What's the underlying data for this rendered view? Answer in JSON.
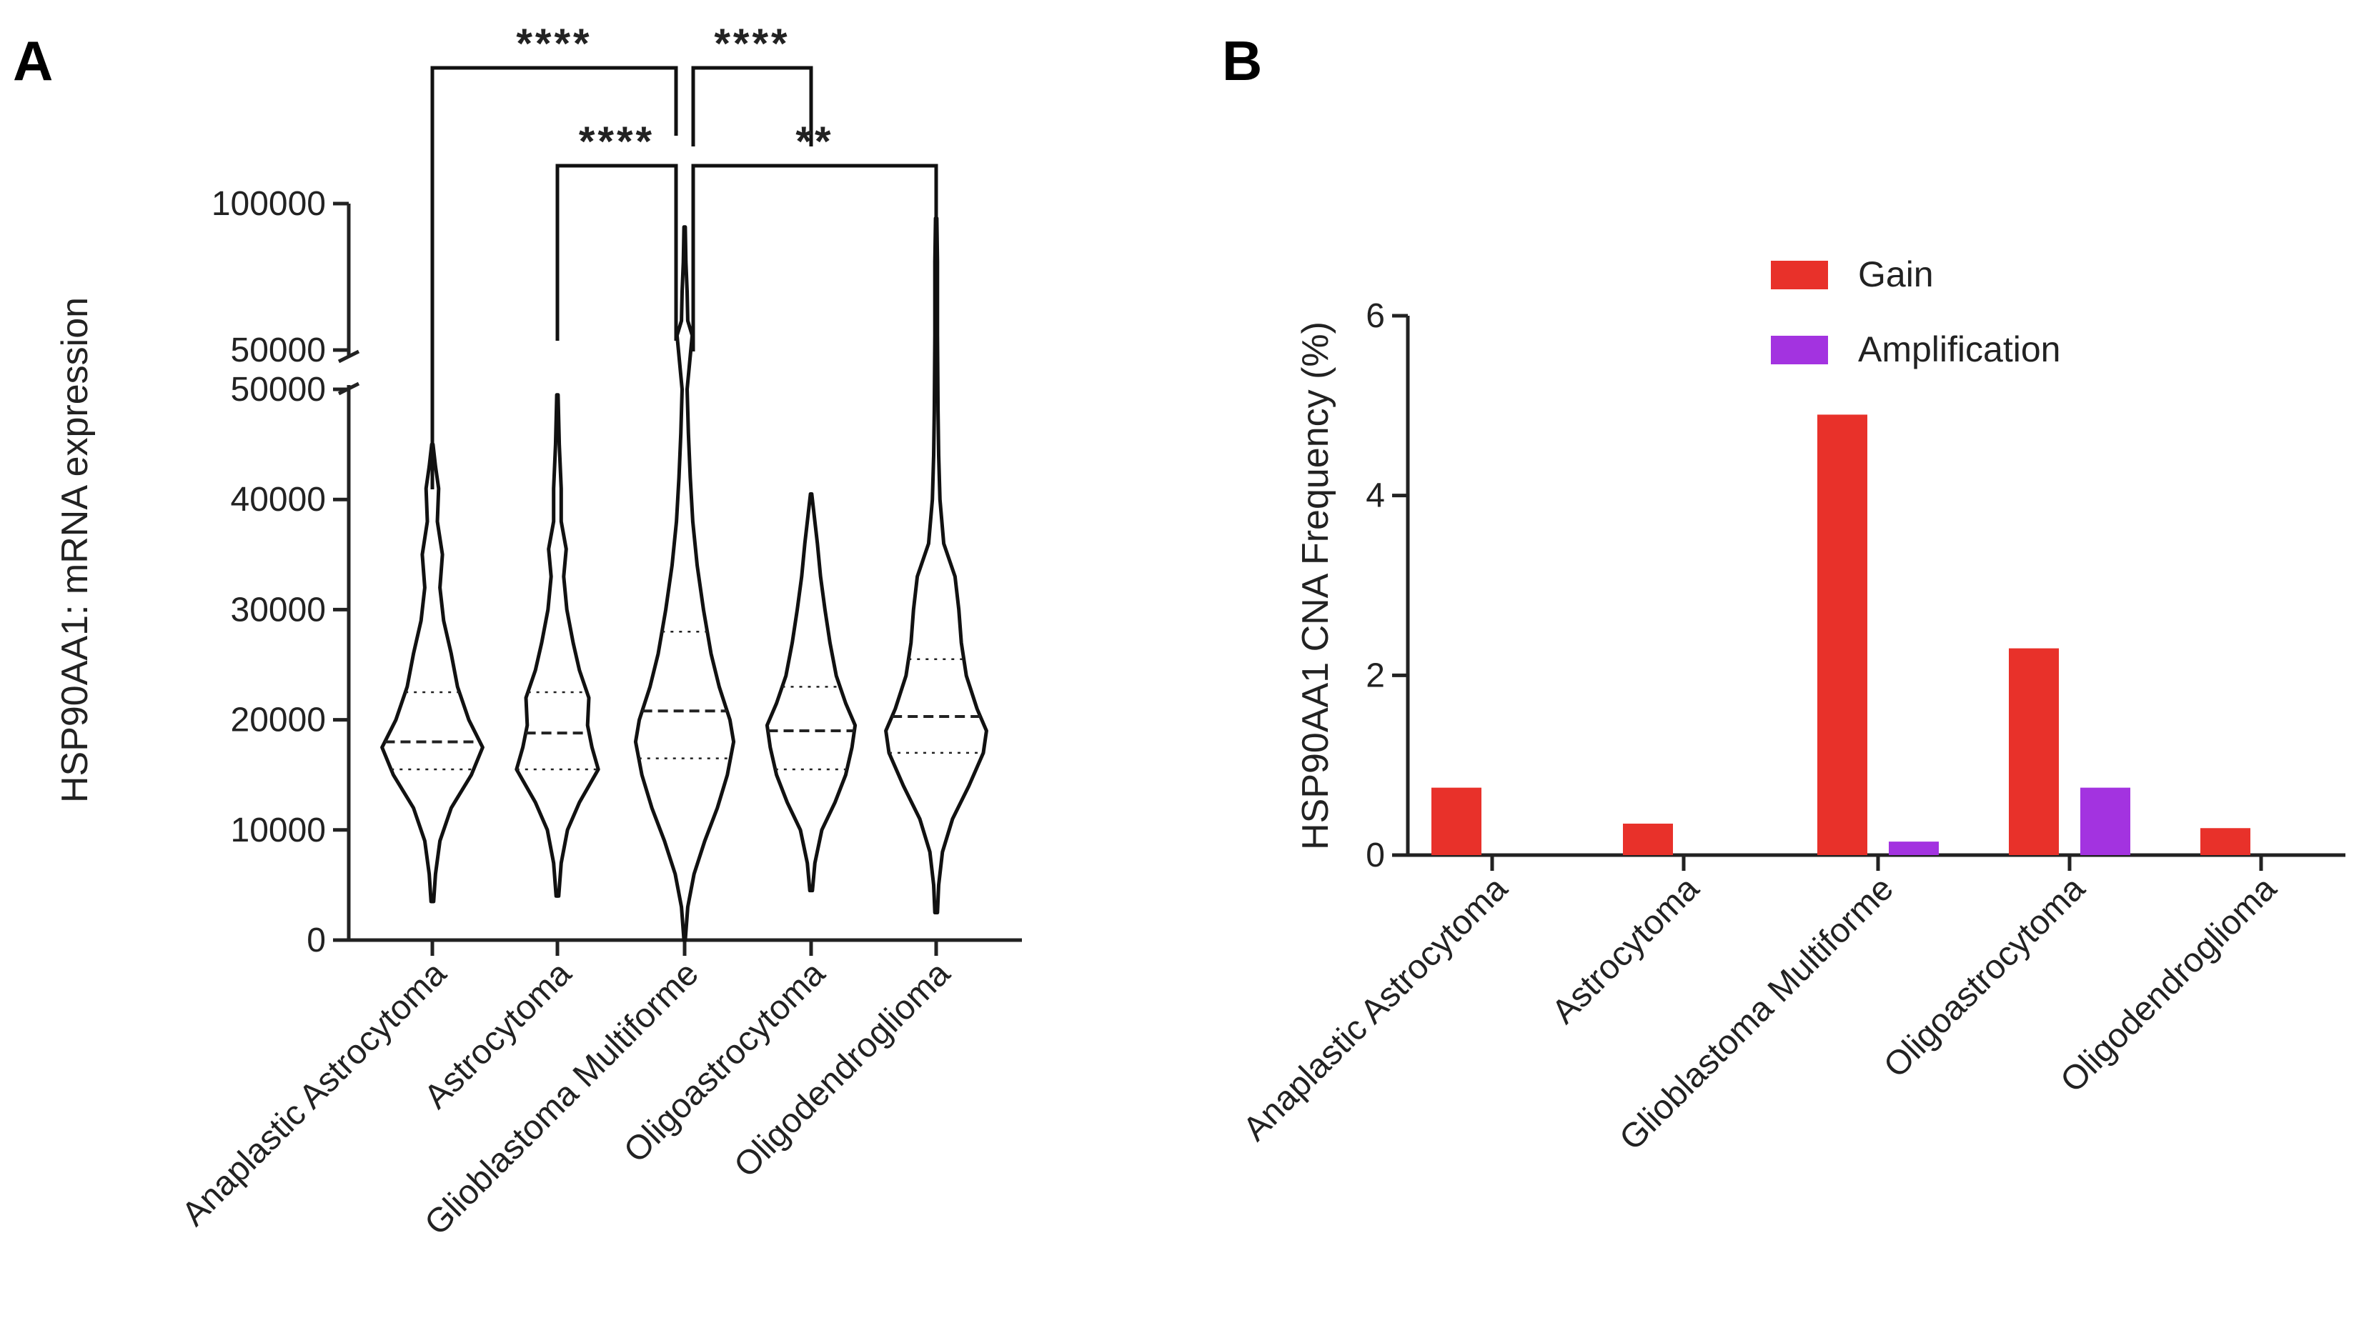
{
  "chart_data": [
    {
      "panel": "A",
      "type": "violin",
      "ylabel": "HSP90AA1: mRNA expression",
      "categories": [
        "Anaplastic Astrocytoma",
        "Astrocytoma",
        "Glioblastoma Multiforme",
        "Oligoastrocytoma",
        "Oligodendroglioma"
      ],
      "y_axis": {
        "lower_segment": {
          "ylim": [
            0,
            50000
          ],
          "ticks": [
            0,
            10000,
            20000,
            30000,
            40000,
            50000
          ],
          "tick_labels": [
            "0",
            "10000",
            "20000",
            "30000",
            "40000",
            "50000"
          ]
        },
        "upper_segment": {
          "ylim": [
            50000,
            100000
          ],
          "ticks": [
            50000,
            100000
          ],
          "tick_labels": [
            "50000",
            "100000"
          ]
        },
        "axis_break": true
      },
      "violins": [
        {
          "name": "Anaplastic Astrocytoma",
          "min": 3500,
          "max": 45000,
          "q1": 15500,
          "median": 18000,
          "q3": 22500,
          "profile": [
            [
              3500,
              0.02
            ],
            [
              6000,
              0.05
            ],
            [
              9000,
              0.12
            ],
            [
              12000,
              0.3
            ],
            [
              15000,
              0.62
            ],
            [
              17500,
              0.8
            ],
            [
              20000,
              0.58
            ],
            [
              23000,
              0.4
            ],
            [
              26000,
              0.3
            ],
            [
              29000,
              0.18
            ],
            [
              32000,
              0.12
            ],
            [
              35000,
              0.16
            ],
            [
              38000,
              0.08
            ],
            [
              41000,
              0.1
            ],
            [
              43000,
              0.05
            ],
            [
              45000,
              0.01
            ]
          ]
        },
        {
          "name": "Astrocytoma",
          "min": 4000,
          "max": 49500,
          "q1": 15500,
          "median": 18800,
          "q3": 22500,
          "profile": [
            [
              4000,
              0.02
            ],
            [
              7000,
              0.06
            ],
            [
              10000,
              0.16
            ],
            [
              12500,
              0.35
            ],
            [
              15500,
              0.65
            ],
            [
              17500,
              0.55
            ],
            [
              19500,
              0.48
            ],
            [
              22000,
              0.5
            ],
            [
              24500,
              0.35
            ],
            [
              27000,
              0.25
            ],
            [
              30000,
              0.15
            ],
            [
              33000,
              0.1
            ],
            [
              35500,
              0.14
            ],
            [
              38000,
              0.06
            ],
            [
              41000,
              0.06
            ],
            [
              45000,
              0.03
            ],
            [
              49500,
              0.01
            ]
          ]
        },
        {
          "name": "Glioblastoma Multiforme",
          "min": 0,
          "max": 92000,
          "q1": 16500,
          "median": 20800,
          "q3": 28000,
          "profile": [
            [
              0,
              0.01
            ],
            [
              3000,
              0.05
            ],
            [
              6000,
              0.15
            ],
            [
              9000,
              0.32
            ],
            [
              12000,
              0.52
            ],
            [
              15000,
              0.68
            ],
            [
              18000,
              0.78
            ],
            [
              20000,
              0.72
            ],
            [
              23000,
              0.55
            ],
            [
              26000,
              0.42
            ],
            [
              30000,
              0.3
            ],
            [
              34000,
              0.2
            ],
            [
              38000,
              0.13
            ],
            [
              42000,
              0.09
            ],
            [
              46000,
              0.06
            ],
            [
              50000,
              0.04
            ],
            [
              55000,
              0.12
            ],
            [
              60000,
              0.05
            ],
            [
              70000,
              0.04
            ],
            [
              80000,
              0.02
            ],
            [
              92000,
              0.01
            ]
          ]
        },
        {
          "name": "Oligoastrocytoma",
          "min": 4500,
          "max": 40500,
          "q1": 15500,
          "median": 19000,
          "q3": 23000,
          "profile": [
            [
              4500,
              0.02
            ],
            [
              7000,
              0.06
            ],
            [
              10000,
              0.17
            ],
            [
              12500,
              0.38
            ],
            [
              15000,
              0.55
            ],
            [
              17500,
              0.65
            ],
            [
              19500,
              0.7
            ],
            [
              21500,
              0.55
            ],
            [
              24000,
              0.4
            ],
            [
              27000,
              0.3
            ],
            [
              30000,
              0.22
            ],
            [
              33000,
              0.15
            ],
            [
              36000,
              0.1
            ],
            [
              38500,
              0.05
            ],
            [
              40500,
              0.01
            ]
          ]
        },
        {
          "name": "Oligodendroglioma",
          "min": 2500,
          "max": 95000,
          "q1": 17000,
          "median": 20300,
          "q3": 25500,
          "profile": [
            [
              2500,
              0.02
            ],
            [
              5000,
              0.04
            ],
            [
              8000,
              0.1
            ],
            [
              11000,
              0.26
            ],
            [
              14000,
              0.52
            ],
            [
              17000,
              0.75
            ],
            [
              19000,
              0.8
            ],
            [
              21000,
              0.65
            ],
            [
              24000,
              0.48
            ],
            [
              27000,
              0.4
            ],
            [
              30000,
              0.36
            ],
            [
              33000,
              0.3
            ],
            [
              36000,
              0.12
            ],
            [
              40000,
              0.06
            ],
            [
              44000,
              0.04
            ],
            [
              48000,
              0.03
            ],
            [
              55000,
              0.02
            ],
            [
              65000,
              0.02
            ],
            [
              80000,
              0.02
            ],
            [
              95000,
              0.01
            ]
          ]
        }
      ],
      "significance": [
        {
          "from": "Anaplastic Astrocytoma",
          "to": "Glioblastoma Multiforme",
          "label": "****"
        },
        {
          "from": "Glioblastoma Multiforme",
          "to": "Oligoastrocytoma",
          "label": "****"
        },
        {
          "from": "Astrocytoma",
          "to": "Glioblastoma Multiforme",
          "label": "****"
        },
        {
          "from": "Glioblastoma Multiforme",
          "to": "Oligodendroglioma",
          "label": "**"
        }
      ]
    },
    {
      "panel": "B",
      "type": "bar",
      "ylabel": "HSP90AA1 CNA Frequency (%)",
      "xlabel": "",
      "categories": [
        "Anaplastic Astrocytoma",
        "Astrocytoma",
        "Glioblastoma Multiforme",
        "Oligoastrocytoma",
        "Oligodendroglioma"
      ],
      "ylim": [
        0,
        6
      ],
      "yticks": [
        0,
        2,
        4,
        6
      ],
      "legend_position": "top-right",
      "series": [
        {
          "name": "Gain",
          "color": "#e8312a",
          "values": [
            0.75,
            0.35,
            4.9,
            2.3,
            0.3
          ]
        },
        {
          "name": "Amplification",
          "color": "#a333e0",
          "values": [
            0,
            0,
            0.15,
            0.75,
            0
          ]
        }
      ]
    }
  ]
}
